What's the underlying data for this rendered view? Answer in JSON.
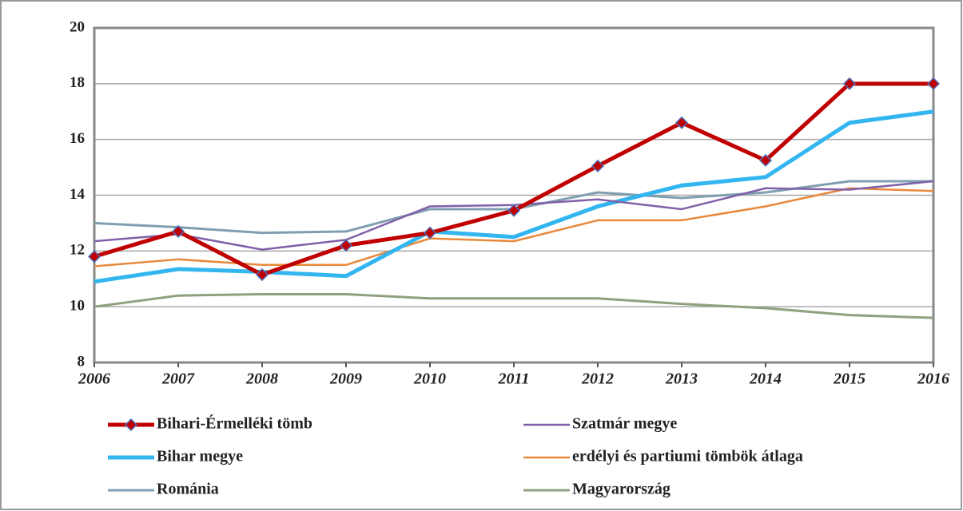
{
  "chart_data": {
    "type": "line",
    "categories": [
      "2006",
      "2007",
      "2008",
      "2009",
      "2010",
      "2011",
      "2012",
      "2013",
      "2014",
      "2015",
      "2016"
    ],
    "series": [
      {
        "name": "Bihari-Érmelléki tömb",
        "color": "#c00000",
        "marker": "diamond",
        "values": [
          11.8,
          12.7,
          11.15,
          12.2,
          12.65,
          13.45,
          15.05,
          16.6,
          15.25,
          18,
          18
        ]
      },
      {
        "name": "Szatmár megye",
        "color": "#8060a8",
        "values": [
          12.35,
          12.6,
          12.05,
          12.4,
          13.6,
          13.65,
          13.85,
          13.5,
          14.25,
          14.2,
          14.5
        ]
      },
      {
        "name": "Bihar megye",
        "color": "#33b5f0",
        "values": [
          10.9,
          11.35,
          11.25,
          11.1,
          12.7,
          12.5,
          13.6,
          14.35,
          14.65,
          16.6,
          17
        ]
      },
      {
        "name": "erdélyi és partiumi tömbök átlaga",
        "color": "#e8883a",
        "values": [
          11.45,
          11.7,
          11.5,
          11.5,
          12.45,
          12.35,
          13.1,
          13.1,
          13.6,
          14.25,
          14.15
        ]
      },
      {
        "name": "Románia",
        "color": "#7f9fb0",
        "values": [
          13,
          12.85,
          12.65,
          12.7,
          13.5,
          13.5,
          14.1,
          13.9,
          14.1,
          14.5,
          14.5
        ]
      },
      {
        "name": "Magyarország",
        "color": "#8fa080",
        "values": [
          10,
          10.4,
          10.45,
          10.45,
          10.3,
          10.3,
          10.3,
          10.1,
          9.95,
          9.7,
          9.6
        ]
      }
    ],
    "ylim": [
      8,
      20
    ],
    "yticks": [
      8,
      10,
      12,
      14,
      16,
      18,
      20
    ],
    "grid": true
  }
}
